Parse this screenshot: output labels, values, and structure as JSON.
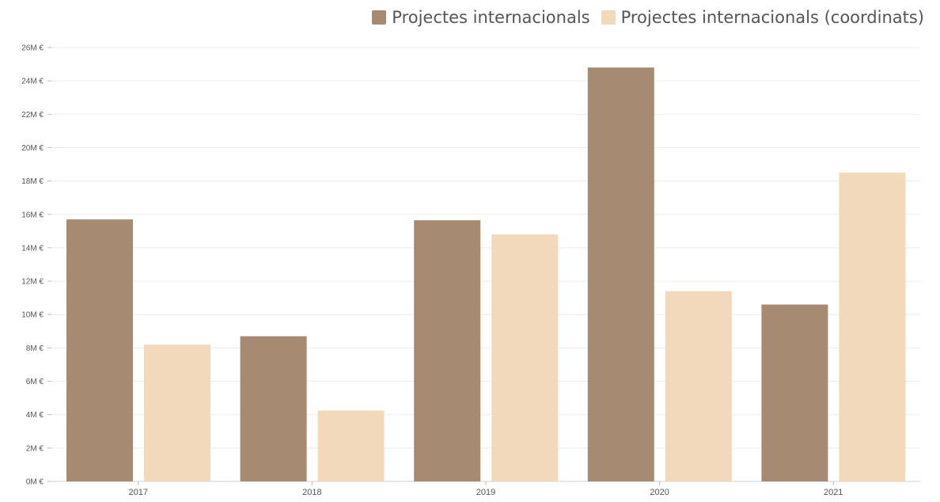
{
  "chart_data": {
    "type": "bar",
    "title": "",
    "xlabel": "",
    "ylabel": "",
    "categories": [
      "2017",
      "2018",
      "2019",
      "2020",
      "2021"
    ],
    "series": [
      {
        "name": "Projectes internacionals",
        "color": "#a68a72",
        "values": [
          15.7,
          8.7,
          15.65,
          24.8,
          10.6
        ]
      },
      {
        "name": "Projectes internacionals (coordinats)",
        "color": "#f3d9bb",
        "values": [
          8.2,
          4.25,
          14.8,
          11.4,
          18.5
        ]
      }
    ],
    "ylim": [
      0,
      26
    ],
    "yticks": [
      "0M €",
      "2M €",
      "4M €",
      "6M €",
      "8M €",
      "10M €",
      "12M €",
      "14M €",
      "16M €",
      "18M €",
      "20M €",
      "22M €",
      "24M €",
      "26M €"
    ],
    "grid": true,
    "legend_position": "top-right"
  }
}
